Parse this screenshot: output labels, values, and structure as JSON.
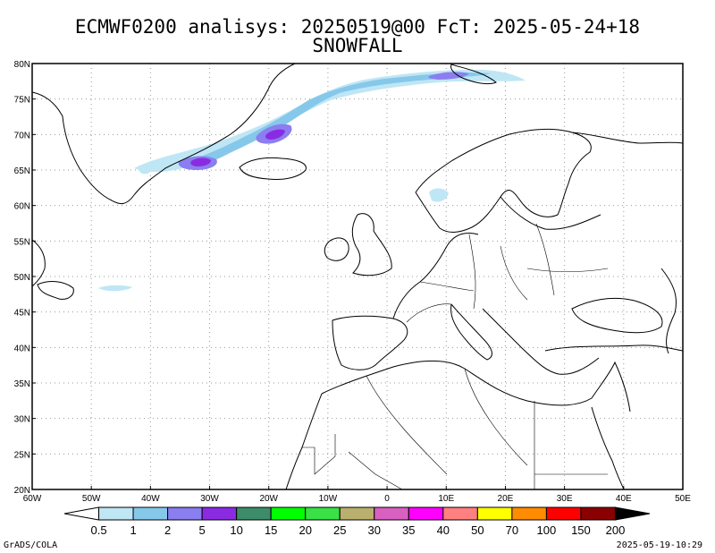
{
  "title": {
    "line1": "ECMWF0200 analisys: 20250519@00 FcT: 2025-05-24+18",
    "line2": "SNOWFALL"
  },
  "axes": {
    "lat_labels": [
      "80N",
      "75N",
      "70N",
      "65N",
      "60N",
      "55N",
      "50N",
      "45N",
      "40N",
      "35N",
      "30N",
      "25N",
      "20N"
    ],
    "lon_labels": [
      "60W",
      "50W",
      "40W",
      "30W",
      "20W",
      "10W",
      "0",
      "10E",
      "20E",
      "30E",
      "40E",
      "50E"
    ],
    "lon_range": [
      -60,
      50
    ],
    "lat_range": [
      20,
      80
    ],
    "grid": "dotted"
  },
  "colorbar": {
    "labels": [
      "0.5",
      "1",
      "2",
      "5",
      "10",
      "15",
      "20",
      "25",
      "30",
      "35",
      "40",
      "50",
      "70",
      "100",
      "150",
      "200"
    ],
    "colors": [
      "#ffffff",
      "#bfe6f5",
      "#86c8ea",
      "#8a7ef0",
      "#8a2be2",
      "#3c8c6a",
      "#00ff00",
      "#39e046",
      "#b8b06c",
      "#d860c0",
      "#ff00ff",
      "#ff8080",
      "#ffff00",
      "#ff8c00",
      "#ff0000",
      "#8b0000",
      "#000000"
    ]
  },
  "footer": {
    "left": "GrADS/COLA",
    "right": "2025-05-19-10:29"
  }
}
